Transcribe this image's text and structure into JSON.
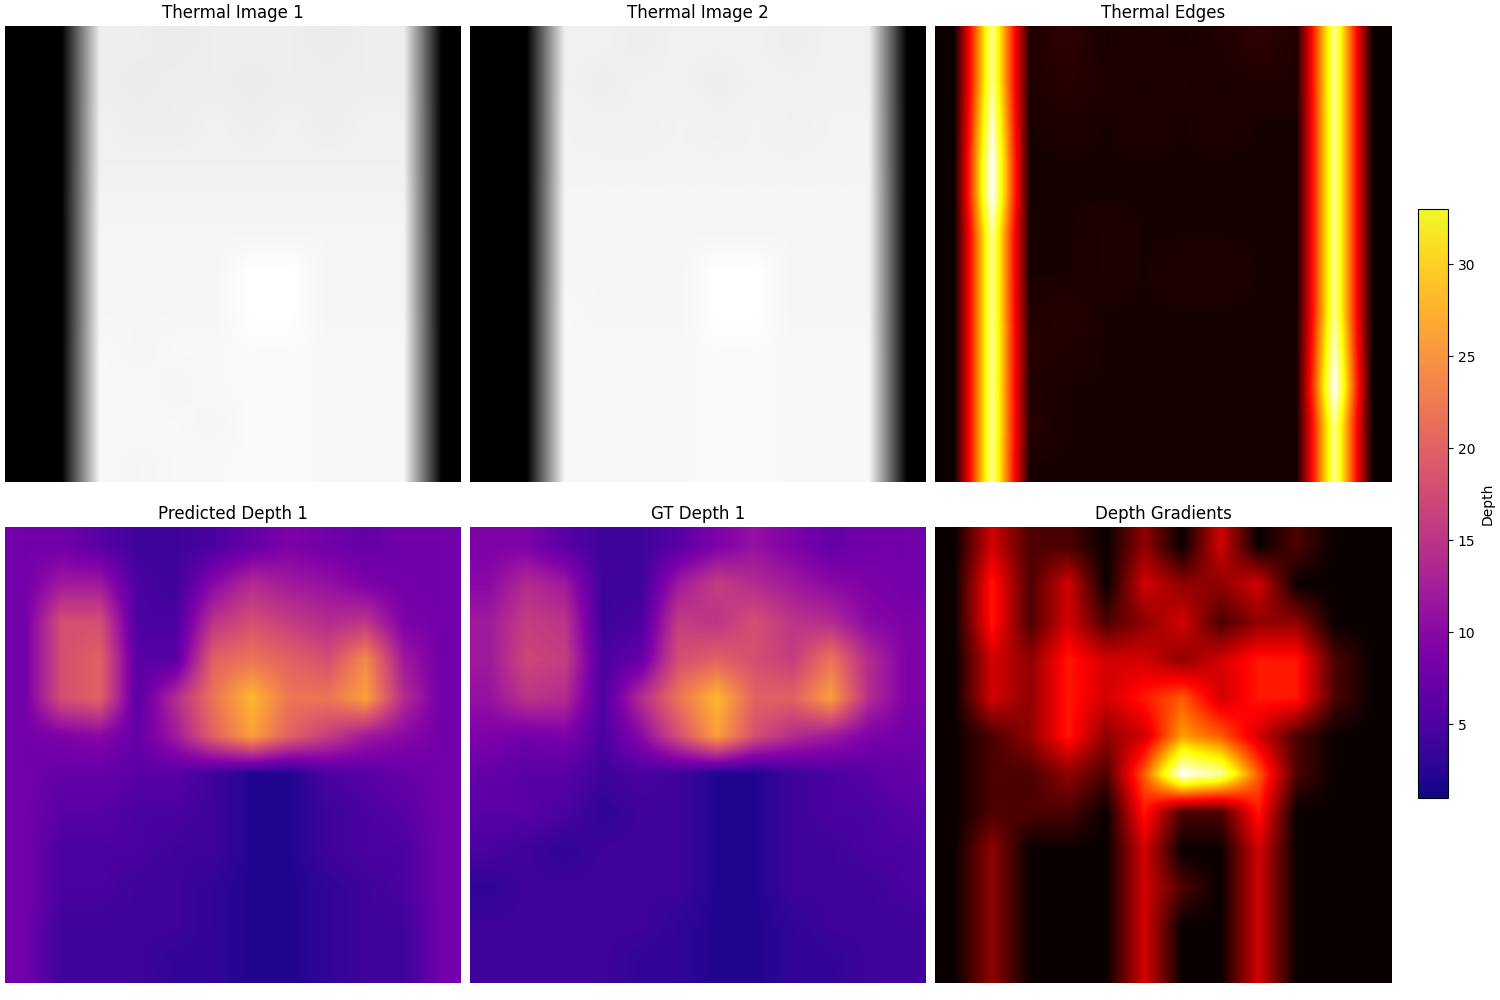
{
  "chart_data": [
    {
      "type": "heatmap",
      "title": "Thermal Image 1",
      "color": "gray",
      "tick_labels": false,
      "cells": [
        [
          0,
          0,
          0.93,
          0.93,
          0.92,
          0.93,
          0.93,
          0.93,
          0.92,
          0.93,
          0.93,
          0
        ],
        [
          0,
          0,
          0.93,
          0.92,
          0.93,
          0.93,
          0.92,
          0.93,
          0.93,
          0.93,
          0.93,
          0
        ],
        [
          0,
          0,
          0.94,
          0.93,
          0.93,
          0.94,
          0.93,
          0.94,
          0.93,
          0.94,
          0.94,
          0
        ],
        [
          0,
          0,
          0.94,
          0.94,
          0.94,
          0.94,
          0.94,
          0.94,
          0.94,
          0.94,
          0.94,
          0
        ],
        [
          0,
          0,
          0.95,
          0.95,
          0.95,
          0.95,
          0.95,
          0.95,
          0.95,
          0.95,
          0.95,
          0
        ],
        [
          0,
          0,
          0.96,
          0.96,
          0.96,
          0.96,
          0.96,
          0.96,
          0.96,
          0.96,
          0.96,
          0
        ],
        [
          0,
          0,
          0.96,
          0.96,
          0.96,
          0.96,
          1.0,
          1.0,
          0.96,
          0.96,
          0.96,
          0
        ],
        [
          0,
          0,
          0.96,
          0.96,
          0.96,
          0.96,
          1.0,
          1.0,
          0.96,
          0.96,
          0.96,
          0
        ],
        [
          0,
          0,
          0.97,
          0.96,
          0.97,
          0.97,
          0.98,
          0.98,
          0.97,
          0.97,
          0.97,
          0
        ],
        [
          0,
          0,
          0.97,
          0.97,
          0.96,
          0.97,
          0.98,
          0.98,
          0.97,
          0.97,
          0.97,
          0
        ],
        [
          0,
          0,
          0.97,
          0.97,
          0.97,
          0.96,
          0.98,
          0.98,
          0.97,
          0.97,
          0.97,
          0
        ],
        [
          0,
          0,
          0.97,
          0.96,
          0.97,
          0.97,
          0.98,
          0.98,
          0.97,
          0.97,
          0.97,
          0
        ]
      ]
    },
    {
      "type": "heatmap",
      "title": "Thermal Image 2",
      "color": "gray",
      "tick_labels": false,
      "cells": [
        [
          0,
          0,
          0.94,
          0.94,
          0.93,
          0.94,
          0.94,
          0.94,
          0.93,
          0.94,
          0.94,
          0
        ],
        [
          0,
          0,
          0.94,
          0.93,
          0.94,
          0.94,
          0.93,
          0.94,
          0.94,
          0.94,
          0.94,
          0
        ],
        [
          0,
          0,
          0.95,
          0.94,
          0.94,
          0.95,
          0.94,
          0.95,
          0.94,
          0.95,
          0.95,
          0
        ],
        [
          0,
          0,
          0.95,
          0.95,
          0.95,
          0.95,
          0.95,
          0.95,
          0.95,
          0.95,
          0.95,
          0
        ],
        [
          0,
          0,
          0.96,
          0.96,
          0.96,
          0.96,
          0.96,
          0.96,
          0.96,
          0.96,
          0.96,
          0
        ],
        [
          0,
          0,
          0.96,
          0.96,
          0.96,
          0.96,
          0.96,
          0.96,
          0.96,
          0.96,
          0.96,
          0
        ],
        [
          0,
          0,
          0.96,
          0.96,
          0.96,
          0.96,
          1.0,
          1.0,
          0.96,
          0.96,
          0.96,
          0
        ],
        [
          0,
          0,
          0.97,
          0.96,
          0.96,
          0.96,
          1.0,
          1.0,
          0.96,
          0.96,
          0.96,
          0
        ],
        [
          0,
          0,
          0.97,
          0.97,
          0.97,
          0.97,
          0.98,
          0.98,
          0.97,
          0.97,
          0.97,
          0
        ],
        [
          0,
          0,
          0.97,
          0.97,
          0.97,
          0.97,
          0.98,
          0.98,
          0.97,
          0.97,
          0.97,
          0
        ],
        [
          0,
          0,
          0.97,
          0.97,
          0.97,
          0.97,
          0.98,
          0.98,
          0.97,
          0.97,
          0.97,
          0
        ],
        [
          0,
          0,
          0.97,
          0.97,
          0.97,
          0.97,
          0.98,
          0.98,
          0.97,
          0.97,
          0.97,
          0
        ]
      ]
    },
    {
      "type": "heatmap",
      "title": "Thermal Edges",
      "color": "hot",
      "tick_labels": false,
      "cells": [
        [
          0,
          0.8,
          0.03,
          0.05,
          0.02,
          0.03,
          0.02,
          0.03,
          0.05,
          0.03,
          0.8,
          0
        ],
        [
          0,
          0.8,
          0.03,
          0.04,
          0.03,
          0.02,
          0.03,
          0.02,
          0.03,
          0.03,
          0.8,
          0
        ],
        [
          0,
          0.85,
          0.02,
          0.03,
          0.02,
          0.03,
          0.02,
          0.03,
          0.02,
          0.02,
          0.8,
          0
        ],
        [
          0,
          0.9,
          0.02,
          0.02,
          0.02,
          0.02,
          0.02,
          0.02,
          0.02,
          0.02,
          0.8,
          0
        ],
        [
          0,
          0.9,
          0.02,
          0.02,
          0.02,
          0.02,
          0.02,
          0.02,
          0.02,
          0.02,
          0.8,
          0
        ],
        [
          0,
          0.8,
          0.02,
          0.02,
          0.03,
          0.02,
          0.02,
          0.02,
          0.02,
          0.02,
          0.8,
          0
        ],
        [
          0,
          0.8,
          0.02,
          0.02,
          0.03,
          0.02,
          0.03,
          0.03,
          0.02,
          0.02,
          0.8,
          0
        ],
        [
          0,
          0.8,
          0.03,
          0.04,
          0.02,
          0.02,
          0.02,
          0.02,
          0.02,
          0.02,
          0.8,
          0
        ],
        [
          0,
          0.8,
          0.04,
          0.03,
          0.02,
          0.02,
          0.02,
          0.02,
          0.02,
          0.02,
          0.85,
          0
        ],
        [
          0,
          0.8,
          0.03,
          0.02,
          0.02,
          0.02,
          0.02,
          0.02,
          0.02,
          0.02,
          0.9,
          0
        ],
        [
          0,
          0.8,
          0.04,
          0.02,
          0.02,
          0.02,
          0.02,
          0.02,
          0.02,
          0.02,
          0.8,
          0
        ],
        [
          0,
          0.8,
          0.02,
          0.02,
          0.02,
          0.02,
          0.02,
          0.02,
          0.02,
          0.02,
          0.8,
          0
        ]
      ]
    },
    {
      "type": "heatmap",
      "title": "Predicted Depth 1",
      "color": "plasma",
      "tick_labels": false,
      "cells": [
        [
          8,
          8,
          6,
          4,
          4,
          5,
          7,
          9,
          8,
          7,
          8,
          8
        ],
        [
          8,
          12,
          12,
          5,
          4,
          10,
          14,
          12,
          11,
          9,
          8,
          8
        ],
        [
          8,
          18,
          18,
          5,
          5,
          15,
          18,
          16,
          14,
          15,
          9,
          8
        ],
        [
          8,
          18,
          20,
          6,
          6,
          20,
          22,
          20,
          18,
          24,
          12,
          8
        ],
        [
          8,
          18,
          20,
          6,
          14,
          22,
          28,
          22,
          22,
          26,
          14,
          8
        ],
        [
          8,
          9,
          10,
          7,
          12,
          20,
          26,
          20,
          16,
          12,
          10,
          8
        ],
        [
          8,
          7,
          7,
          6,
          6,
          4,
          2,
          2,
          5,
          6,
          7,
          8
        ],
        [
          8,
          6,
          6,
          5,
          5,
          4,
          2,
          2,
          4,
          5,
          6,
          8
        ],
        [
          8,
          5,
          5,
          5,
          4,
          4,
          2,
          2,
          4,
          5,
          5,
          8
        ],
        [
          8,
          5,
          5,
          4,
          4,
          3,
          2,
          2,
          3,
          4,
          5,
          8
        ],
        [
          8,
          4,
          4,
          4,
          4,
          3,
          2,
          2,
          3,
          4,
          4,
          8
        ],
        [
          8,
          4,
          4,
          4,
          3,
          3,
          2,
          2,
          3,
          4,
          4,
          8
        ]
      ]
    },
    {
      "type": "heatmap",
      "title": "GT Depth 1",
      "color": "plasma",
      "tick_labels": false,
      "cells": [
        [
          9,
          9,
          6,
          4,
          4,
          6,
          9,
          11,
          9,
          7,
          8,
          8
        ],
        [
          10,
          14,
          12,
          4,
          4,
          12,
          16,
          14,
          12,
          10,
          9,
          8
        ],
        [
          12,
          16,
          15,
          4,
          5,
          16,
          15,
          18,
          15,
          14,
          10,
          9
        ],
        [
          12,
          17,
          16,
          5,
          7,
          18,
          20,
          18,
          16,
          22,
          14,
          9
        ],
        [
          11,
          15,
          14,
          5,
          14,
          22,
          28,
          20,
          20,
          26,
          14,
          9
        ],
        [
          9,
          8,
          9,
          5,
          10,
          18,
          26,
          18,
          14,
          12,
          9,
          8
        ],
        [
          7,
          6,
          6,
          4,
          5,
          4,
          2,
          2,
          4,
          5,
          6,
          7
        ],
        [
          6,
          6,
          5,
          3,
          4,
          4,
          2,
          2,
          4,
          5,
          5,
          6
        ],
        [
          5,
          4,
          3,
          4,
          4,
          4,
          2,
          2,
          4,
          4,
          5,
          5
        ],
        [
          3,
          4,
          4,
          4,
          4,
          4,
          2,
          2,
          4,
          4,
          4,
          5
        ],
        [
          4,
          4,
          4,
          4,
          4,
          3,
          2,
          2,
          3,
          4,
          4,
          4
        ],
        [
          4,
          4,
          4,
          4,
          3,
          3,
          2,
          2,
          3,
          3,
          4,
          4
        ]
      ]
    },
    {
      "type": "heatmap",
      "title": "Depth Gradients",
      "color": "hot",
      "tick_labels": false,
      "cells": [
        [
          0,
          0.3,
          0.1,
          0.1,
          0,
          0.2,
          0,
          0.3,
          0,
          0.1,
          0,
          0
        ],
        [
          0,
          0.4,
          0.1,
          0.3,
          0,
          0.3,
          0.2,
          0.2,
          0.3,
          0,
          0,
          0
        ],
        [
          0,
          0.4,
          0.1,
          0.3,
          0.1,
          0.2,
          0.3,
          0.1,
          0.2,
          0.2,
          0,
          0
        ],
        [
          0,
          0.3,
          0.2,
          0.4,
          0.3,
          0.3,
          0.2,
          0.3,
          0.4,
          0.4,
          0.1,
          0
        ],
        [
          0,
          0.3,
          0.2,
          0.4,
          0.3,
          0.4,
          0.5,
          0.3,
          0.4,
          0.4,
          0.1,
          0
        ],
        [
          0,
          0.1,
          0.2,
          0.4,
          0.2,
          0.3,
          0.6,
          0.5,
          0.3,
          0.1,
          0,
          0
        ],
        [
          0,
          0.1,
          0.1,
          0.2,
          0.1,
          0.5,
          1.0,
          0.9,
          0.5,
          0.1,
          0,
          0
        ],
        [
          0,
          0.1,
          0.1,
          0.1,
          0,
          0.4,
          0.1,
          0.1,
          0.4,
          0,
          0,
          0
        ],
        [
          0,
          0.2,
          0,
          0,
          0,
          0.3,
          0,
          0,
          0.3,
          0,
          0,
          0
        ],
        [
          0,
          0.2,
          0,
          0,
          0,
          0.3,
          0.1,
          0,
          0.3,
          0,
          0,
          0
        ],
        [
          0,
          0.2,
          0,
          0,
          0,
          0.3,
          0,
          0,
          0.3,
          0,
          0,
          0
        ],
        [
          0,
          0.2,
          0,
          0,
          0,
          0.3,
          0,
          0,
          0.3,
          0,
          0,
          0
        ]
      ]
    }
  ],
  "colorbar": {
    "label": "Depth",
    "range": [
      1,
      33
    ],
    "ticks": [
      5,
      10,
      15,
      20,
      25,
      30
    ]
  }
}
